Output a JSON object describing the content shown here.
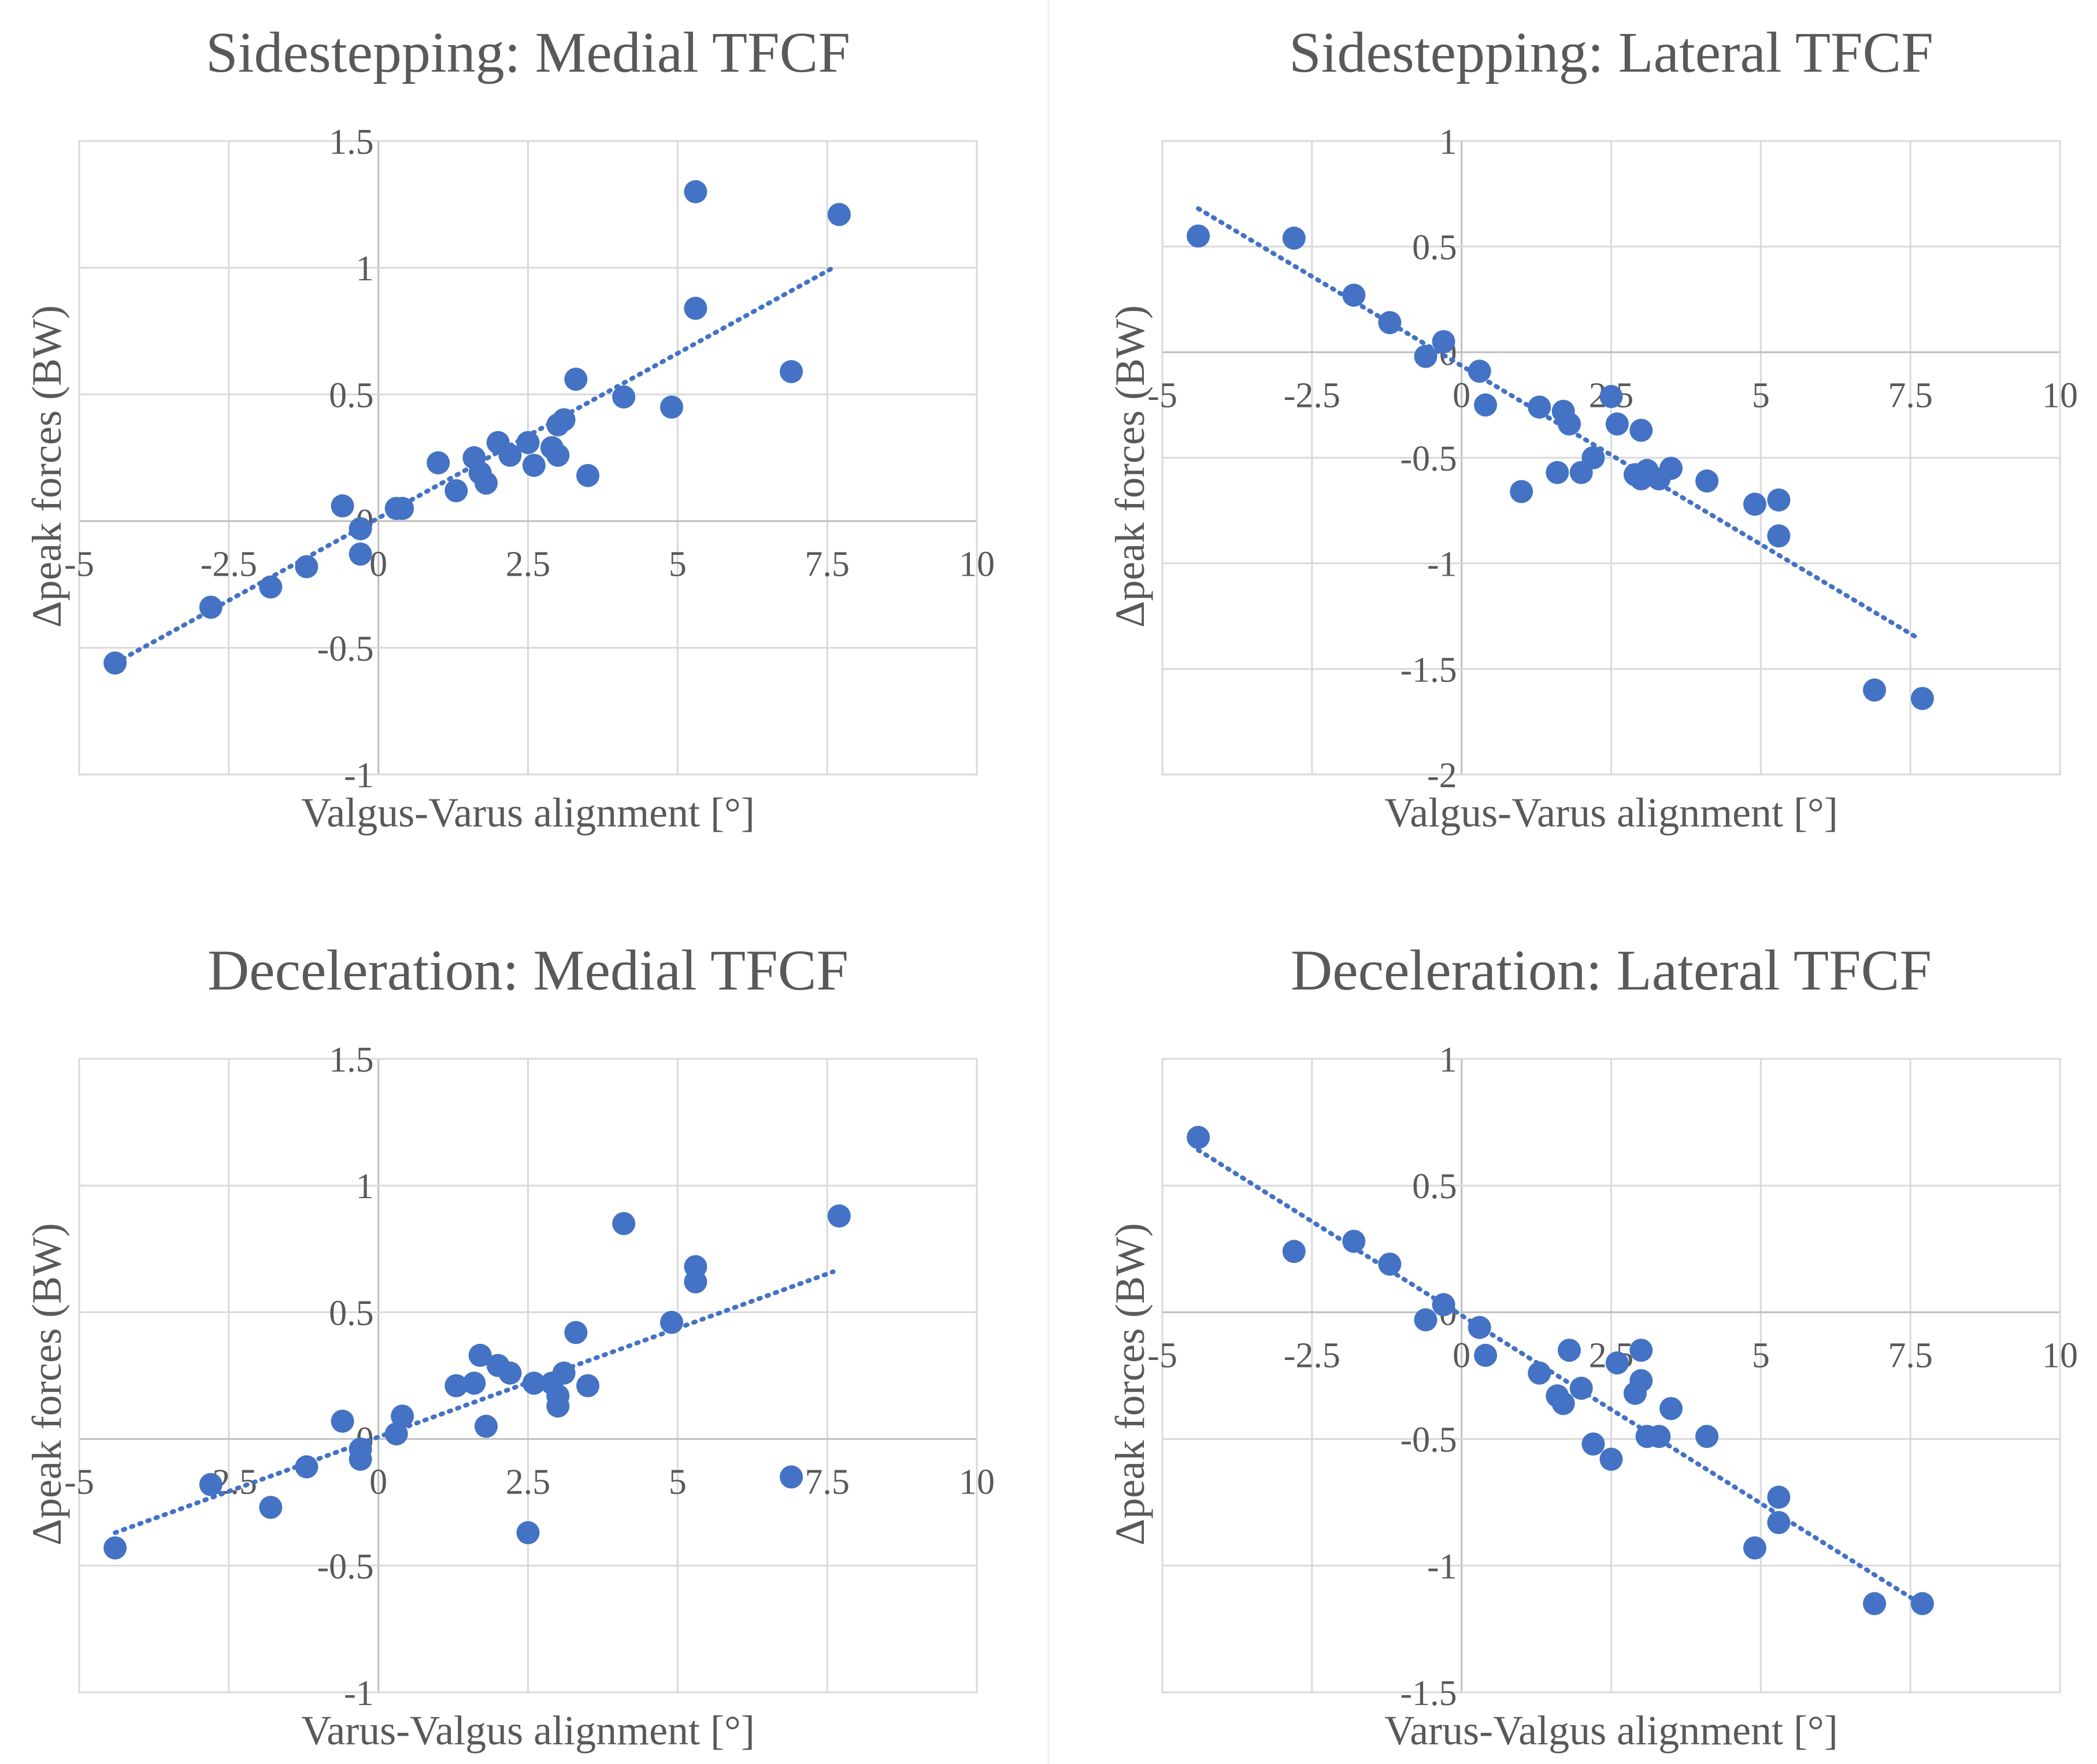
{
  "chart_data": [
    {
      "type": "scatter",
      "title": "Sidestepping: Medial TFCF",
      "xlabel": "Valgus-Varus alignment [°]",
      "ylabel": "Δpeak forces (BW)",
      "xlim": [
        -5,
        10
      ],
      "ylim": [
        -1,
        1.5
      ],
      "xticks": [
        "-5",
        "-2.5",
        "0",
        "2.5",
        "5",
        "7.5",
        "10"
      ],
      "yticks": [
        "-1",
        "-0.5",
        "0",
        "0.5",
        "1",
        "1.5"
      ],
      "grid": true,
      "marker_color": "#4472c4",
      "trendline": {
        "style": "dotted-linear",
        "from": [
          -4.4,
          -0.56
        ],
        "to": [
          7.6,
          1.0
        ]
      },
      "points": [
        {
          "x": -4.4,
          "y": -0.56
        },
        {
          "x": -2.8,
          "y": -0.34
        },
        {
          "x": -1.8,
          "y": -0.26
        },
        {
          "x": -1.2,
          "y": -0.18
        },
        {
          "x": -0.6,
          "y": 0.06
        },
        {
          "x": -0.3,
          "y": -0.03
        },
        {
          "x": -0.3,
          "y": -0.13
        },
        {
          "x": 0.3,
          "y": 0.05
        },
        {
          "x": 0.4,
          "y": 0.05
        },
        {
          "x": 1.0,
          "y": 0.23
        },
        {
          "x": 1.3,
          "y": 0.12
        },
        {
          "x": 1.6,
          "y": 0.25
        },
        {
          "x": 1.7,
          "y": 0.19
        },
        {
          "x": 1.8,
          "y": 0.15
        },
        {
          "x": 2.0,
          "y": 0.31
        },
        {
          "x": 2.2,
          "y": 0.26
        },
        {
          "x": 2.5,
          "y": 0.31
        },
        {
          "x": 2.6,
          "y": 0.22
        },
        {
          "x": 2.9,
          "y": 0.29
        },
        {
          "x": 3.0,
          "y": 0.38
        },
        {
          "x": 3.0,
          "y": 0.26
        },
        {
          "x": 3.1,
          "y": 0.4
        },
        {
          "x": 3.3,
          "y": 0.56
        },
        {
          "x": 3.5,
          "y": 0.18
        },
        {
          "x": 4.1,
          "y": 0.49
        },
        {
          "x": 4.9,
          "y": 0.45
        },
        {
          "x": 5.3,
          "y": 1.3
        },
        {
          "x": 5.3,
          "y": 0.84
        },
        {
          "x": 6.9,
          "y": 0.59
        },
        {
          "x": 7.7,
          "y": 1.21
        }
      ]
    },
    {
      "type": "scatter",
      "title": "Sidestepping: Lateral TFCF",
      "xlabel": "Valgus-Varus alignment [°]",
      "ylabel": "Δpeak forces (BW)",
      "xlim": [
        -5,
        10
      ],
      "ylim": [
        -2,
        1
      ],
      "xticks": [
        "-5",
        "-2.5",
        "0",
        "2.5",
        "5",
        "7.5",
        "10"
      ],
      "yticks": [
        "-2",
        "-1.5",
        "-1",
        "-0.5",
        "0",
        "0.5",
        "1"
      ],
      "grid": true,
      "marker_color": "#4472c4",
      "trendline": {
        "style": "dotted-linear",
        "from": [
          -4.4,
          0.68
        ],
        "to": [
          7.6,
          -1.35
        ]
      },
      "points": [
        {
          "x": -4.4,
          "y": 0.55
        },
        {
          "x": -2.8,
          "y": 0.54
        },
        {
          "x": -1.8,
          "y": 0.27
        },
        {
          "x": -1.2,
          "y": 0.14
        },
        {
          "x": -0.6,
          "y": -0.02
        },
        {
          "x": -0.3,
          "y": 0.05
        },
        {
          "x": 0.3,
          "y": -0.09
        },
        {
          "x": 0.4,
          "y": -0.25
        },
        {
          "x": 1.0,
          "y": -0.66
        },
        {
          "x": 1.3,
          "y": -0.26
        },
        {
          "x": 1.6,
          "y": -0.57
        },
        {
          "x": 1.7,
          "y": -0.28
        },
        {
          "x": 1.8,
          "y": -0.34
        },
        {
          "x": 2.0,
          "y": -0.57
        },
        {
          "x": 2.2,
          "y": -0.5
        },
        {
          "x": 2.5,
          "y": -0.21
        },
        {
          "x": 2.6,
          "y": -0.34
        },
        {
          "x": 2.9,
          "y": -0.58
        },
        {
          "x": 3.0,
          "y": -0.37
        },
        {
          "x": 3.0,
          "y": -0.6
        },
        {
          "x": 3.1,
          "y": -0.56
        },
        {
          "x": 3.3,
          "y": -0.6
        },
        {
          "x": 3.5,
          "y": -0.55
        },
        {
          "x": 4.1,
          "y": -0.61
        },
        {
          "x": 4.9,
          "y": -0.72
        },
        {
          "x": 5.3,
          "y": -0.7
        },
        {
          "x": 5.3,
          "y": -0.87
        },
        {
          "x": 6.9,
          "y": -1.6
        },
        {
          "x": 7.7,
          "y": -1.64
        }
      ]
    },
    {
      "type": "scatter",
      "title": "Deceleration: Medial TFCF",
      "xlabel": "Varus-Valgus alignment [°]",
      "ylabel": "Δpeak forces (BW)",
      "xlim": [
        -5,
        10
      ],
      "ylim": [
        -1,
        1.5
      ],
      "xticks": [
        "-5",
        "-2.5",
        "0",
        "2.5",
        "5",
        "7.5",
        "10"
      ],
      "yticks": [
        "-1",
        "-0.5",
        "0",
        "0.5",
        "1",
        "1.5"
      ],
      "grid": true,
      "marker_color": "#4472c4",
      "trendline": {
        "style": "dotted-linear",
        "from": [
          -4.4,
          -0.37
        ],
        "to": [
          7.6,
          0.66
        ]
      },
      "points": [
        {
          "x": -4.4,
          "y": -0.43
        },
        {
          "x": -2.8,
          "y": -0.18
        },
        {
          "x": -1.8,
          "y": -0.27
        },
        {
          "x": -1.2,
          "y": -0.11
        },
        {
          "x": -0.6,
          "y": 0.07
        },
        {
          "x": -0.3,
          "y": -0.04
        },
        {
          "x": -0.3,
          "y": -0.08
        },
        {
          "x": 0.3,
          "y": 0.02
        },
        {
          "x": 0.4,
          "y": 0.09
        },
        {
          "x": 1.3,
          "y": 0.21
        },
        {
          "x": 1.6,
          "y": 0.22
        },
        {
          "x": 1.7,
          "y": 0.33
        },
        {
          "x": 1.8,
          "y": 0.05
        },
        {
          "x": 2.0,
          "y": 0.29
        },
        {
          "x": 2.2,
          "y": 0.26
        },
        {
          "x": 2.5,
          "y": -0.37
        },
        {
          "x": 2.6,
          "y": 0.22
        },
        {
          "x": 2.9,
          "y": 0.22
        },
        {
          "x": 3.0,
          "y": 0.17
        },
        {
          "x": 3.0,
          "y": 0.13
        },
        {
          "x": 3.1,
          "y": 0.26
        },
        {
          "x": 3.3,
          "y": 0.42
        },
        {
          "x": 3.5,
          "y": 0.21
        },
        {
          "x": 4.1,
          "y": 0.85
        },
        {
          "x": 4.9,
          "y": 0.46
        },
        {
          "x": 5.3,
          "y": 0.68
        },
        {
          "x": 5.3,
          "y": 0.62
        },
        {
          "x": 6.9,
          "y": -0.15
        },
        {
          "x": 7.7,
          "y": 0.88
        }
      ]
    },
    {
      "type": "scatter",
      "title": "Deceleration: Lateral TFCF",
      "xlabel": "Varus-Valgus alignment [°]",
      "ylabel": "Δpeak forces (BW)",
      "xlim": [
        -5,
        10
      ],
      "ylim": [
        -1.5,
        1
      ],
      "xticks": [
        "-5",
        "-2.5",
        "0",
        "2.5",
        "5",
        "7.5",
        "10"
      ],
      "yticks": [
        "-1.5",
        "-1",
        "-0.5",
        "0",
        "0.5",
        "1"
      ],
      "grid": true,
      "marker_color": "#4472c4",
      "trendline": {
        "style": "dotted-linear",
        "from": [
          -4.4,
          0.64
        ],
        "to": [
          7.6,
          -1.14
        ]
      },
      "points": [
        {
          "x": -4.4,
          "y": 0.69
        },
        {
          "x": -2.8,
          "y": 0.24
        },
        {
          "x": -1.8,
          "y": 0.28
        },
        {
          "x": -1.2,
          "y": 0.19
        },
        {
          "x": -0.6,
          "y": -0.03
        },
        {
          "x": -0.3,
          "y": 0.03
        },
        {
          "x": 0.3,
          "y": -0.06
        },
        {
          "x": 0.4,
          "y": -0.17
        },
        {
          "x": 1.3,
          "y": -0.24
        },
        {
          "x": 1.6,
          "y": -0.33
        },
        {
          "x": 1.7,
          "y": -0.36
        },
        {
          "x": 1.8,
          "y": -0.15
        },
        {
          "x": 2.0,
          "y": -0.3
        },
        {
          "x": 2.2,
          "y": -0.52
        },
        {
          "x": 2.5,
          "y": -0.58
        },
        {
          "x": 2.6,
          "y": -0.2
        },
        {
          "x": 2.9,
          "y": -0.32
        },
        {
          "x": 3.0,
          "y": -0.27
        },
        {
          "x": 3.0,
          "y": -0.15
        },
        {
          "x": 3.1,
          "y": -0.49
        },
        {
          "x": 3.3,
          "y": -0.49
        },
        {
          "x": 3.5,
          "y": -0.38
        },
        {
          "x": 4.1,
          "y": -0.49
        },
        {
          "x": 4.9,
          "y": -0.93
        },
        {
          "x": 5.3,
          "y": -0.73
        },
        {
          "x": 5.3,
          "y": -0.83
        },
        {
          "x": 6.9,
          "y": -1.15
        },
        {
          "x": 7.7,
          "y": -1.15
        }
      ]
    }
  ]
}
